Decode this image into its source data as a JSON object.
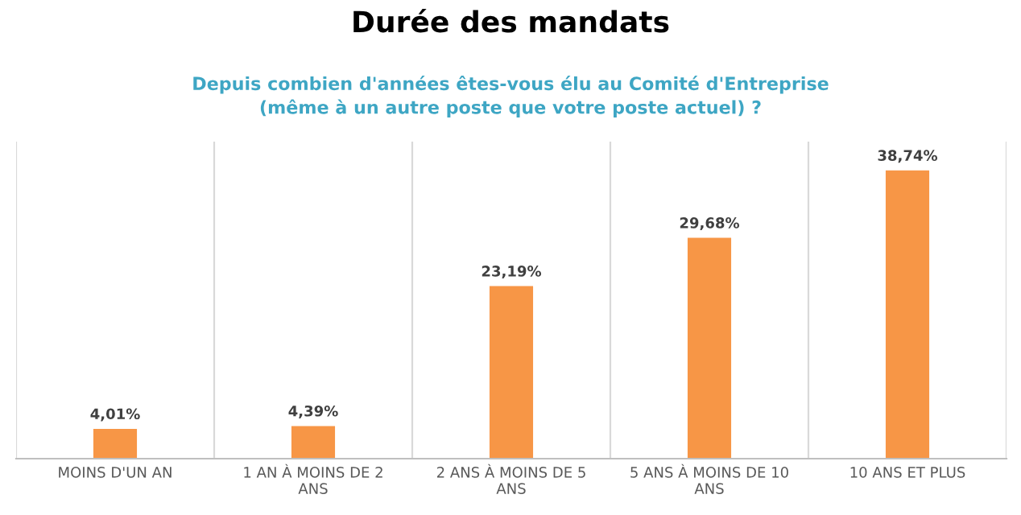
{
  "chart_data": {
    "type": "bar",
    "title": "Durée des mandats",
    "subtitle": "Depuis combien d'années êtes-vous élu au Comité d'Entreprise\n(même à un autre poste que votre poste actuel) ?",
    "categories": [
      "MOINS D'UN AN",
      "1 AN À MOINS DE 2 ANS",
      "2 ANS À MOINS DE 5 ANS",
      "5 ANS À MOINS DE 10 ANS",
      "10 ANS ET PLUS"
    ],
    "values": [
      4.01,
      4.39,
      23.19,
      29.68,
      38.74
    ],
    "value_labels": [
      "4,01%",
      "4,39%",
      "23,19%",
      "29,68%",
      "38,74%"
    ],
    "color": "#f79646",
    "grid": "x",
    "legend": false,
    "tick_labels": "x"
  }
}
